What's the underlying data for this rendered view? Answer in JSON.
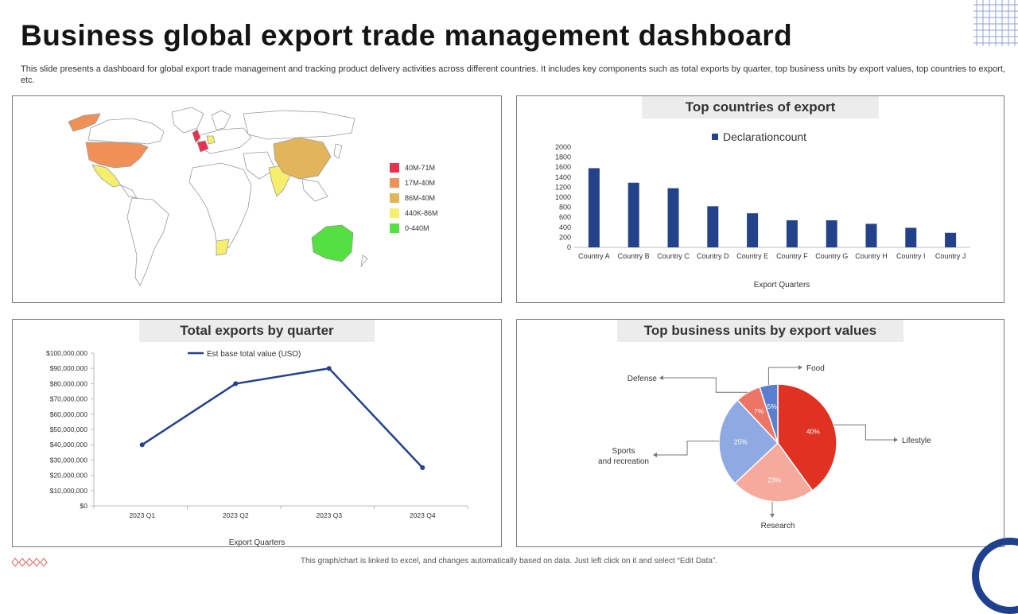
{
  "header": {
    "title": "Business global export trade management dashboard",
    "subtitle": "This slide presents a dashboard for global export trade management and tracking product delivery activities across different countries. It includes key components such as total exports by quarter, top business units by export values, top countries to export,  etc."
  },
  "map_panel": {
    "legend": [
      {
        "label": "40M-71M",
        "color": "#e8314f"
      },
      {
        "label": "17M-40M",
        "color": "#ef9157"
      },
      {
        "label": "86M-40M",
        "color": "#e3b55b"
      },
      {
        "label": "440K-86M",
        "color": "#f6ef6e"
      },
      {
        "label": "0-440M",
        "color": "#54e041"
      }
    ]
  },
  "countries_panel": {
    "title": "Top countries of export",
    "legend_label": "Declarationcount",
    "xlabel": "Export Quarters"
  },
  "quarter_panel": {
    "title": "Total exports by quarter",
    "legend_label": "Est base total value (USO)",
    "xlabel": "Export Quarters"
  },
  "units_panel": {
    "title": "Top business units by export values"
  },
  "footer": {
    "note": "This graph/chart is linked to excel, and changes automatically based on data. Just left click on it and select “Edit Data”."
  },
  "chart_data": [
    {
      "type": "bar",
      "title": "Top countries of export",
      "xlabel": "Export Quarters",
      "ylabel": "",
      "categories": [
        "Country A",
        "Country B",
        "Country C",
        "Country D",
        "Country E",
        "Country F",
        "Country G",
        "Country H",
        "Country I",
        "Country J"
      ],
      "series": [
        {
          "name": "Declarationcount",
          "values": [
            1580,
            1290,
            1180,
            820,
            680,
            540,
            540,
            470,
            390,
            290
          ],
          "color": "#23428a"
        }
      ],
      "yticks": [
        "0",
        "200",
        "400",
        "600",
        "800",
        "1000",
        "1200",
        "1400",
        "1600",
        "1800",
        "2000"
      ],
      "ylim": [
        0,
        2000
      ],
      "legend": "top"
    },
    {
      "type": "line",
      "title": "Total exports by quarter",
      "xlabel": "Export Quarters",
      "categories": [
        "2023 Q1",
        "2023 Q2",
        "2023 Q3",
        "2023 Q4"
      ],
      "series": [
        {
          "name": "Est base total value (USO)",
          "values": [
            40000000,
            80000000,
            90000000,
            25000000
          ],
          "color": "#23428a"
        }
      ],
      "yticks": [
        "$0",
        "$10,000,000",
        "$20,000,000",
        "$30,000,000",
        "$40,000,000",
        "$50,000,000",
        "$60,000,000",
        "$70,000,000",
        "$80,000,000",
        "$90,000,000",
        "$100,000,000"
      ],
      "ylim": [
        0,
        100000000
      ],
      "legend": "top"
    },
    {
      "type": "pie",
      "title": "Top business units by export values",
      "slices": [
        {
          "name": "Lifestyle",
          "value": 40,
          "label": "40%",
          "color": "#e03122"
        },
        {
          "name": "Research",
          "value": 23,
          "label": "23%",
          "color": "#f5aa9c"
        },
        {
          "name": "Sports\nand recreation",
          "value": 25,
          "label": "25%",
          "color": "#8fa9e3"
        },
        {
          "name": "Defense",
          "value": 7,
          "label": "7%",
          "color": "#ec7565"
        },
        {
          "name": "Food",
          "value": 5,
          "label": "5%",
          "color": "#5b7fcf"
        }
      ]
    }
  ]
}
